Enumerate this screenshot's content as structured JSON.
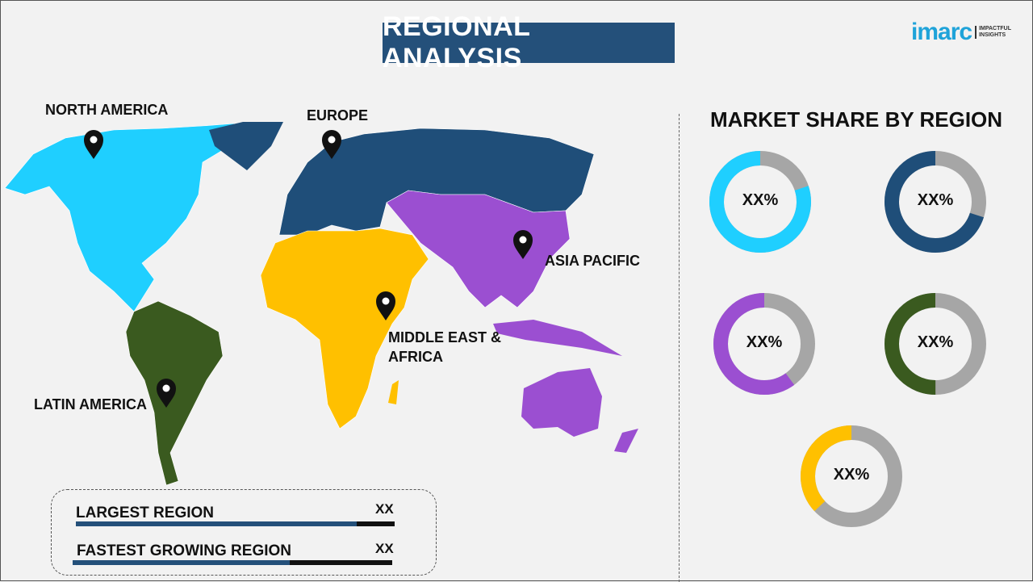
{
  "header": {
    "title": "REGIONAL ANALYSIS",
    "logo_brand": "imarc",
    "logo_tagline": "IMPACTFUL INSIGHTS"
  },
  "map": {
    "regions": [
      {
        "label": "NORTH AMERICA",
        "color": "#1fcfff"
      },
      {
        "label": "EUROPE",
        "color": "#1f4e79"
      },
      {
        "label": "ASIA PACIFIC",
        "color": "#9b4fd1"
      },
      {
        "label": "MIDDLE EAST & AFRICA",
        "color": "#ffc000"
      },
      {
        "label": "LATIN AMERICA",
        "color": "#3a5a1f"
      }
    ],
    "pin_icon": "map-pin-icon"
  },
  "market_share": {
    "title": "MARKET SHARE BY REGION",
    "remainder_color": "#a6a6a6",
    "donuts": [
      {
        "value_label": "XX%",
        "color": "#1fcfff",
        "share": 0.8
      },
      {
        "value_label": "XX%",
        "color": "#1f4e79",
        "share": 0.7
      },
      {
        "value_label": "XX%",
        "color": "#9b4fd1",
        "share": 0.6
      },
      {
        "value_label": "XX%",
        "color": "#3a5a1f",
        "share": 0.5
      },
      {
        "value_label": "XX%",
        "color": "#ffc000",
        "share": 0.37
      }
    ]
  },
  "summary": {
    "largest": {
      "label": "LARGEST REGION",
      "value": "XX",
      "fill": 0.88
    },
    "fastest": {
      "label": "FASTEST GROWING REGION",
      "value": "XX",
      "fill": 0.68
    }
  }
}
